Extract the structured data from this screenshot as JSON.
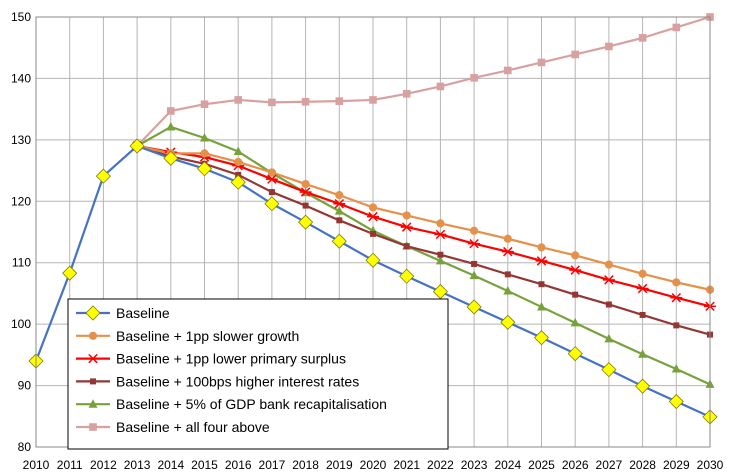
{
  "chart_data": {
    "type": "line",
    "title": "",
    "xlabel": "",
    "ylabel": "",
    "x": [
      2010,
      2011,
      2012,
      2013,
      2014,
      2015,
      2016,
      2017,
      2018,
      2019,
      2020,
      2021,
      2022,
      2023,
      2024,
      2025,
      2026,
      2027,
      2028,
      2029,
      2030
    ],
    "ylim": [
      80,
      150
    ],
    "yticks": [
      80,
      90,
      100,
      110,
      120,
      130,
      140,
      150
    ],
    "grid": "vertical and horizontal major gridlines",
    "legend_position": "bottom-left",
    "series": [
      {
        "name": "Baseline",
        "color": "#4472c4",
        "marker": "diamond",
        "marker_color": "#ffff00",
        "values": [
          94,
          108.3,
          124.1,
          129,
          127,
          125.3,
          123.1,
          119.6,
          116.6,
          113.5,
          110.4,
          107.8,
          105.3,
          102.8,
          100.3,
          97.8,
          95.2,
          92.6,
          89.9,
          87.4,
          84.9
        ]
      },
      {
        "name": "Baseline + 1pp slower growth",
        "color": "#e5914a",
        "marker": "circle",
        "values": [
          null,
          null,
          null,
          129,
          127.8,
          127.8,
          126.4,
          124.7,
          122.8,
          121,
          119,
          117.7,
          116.4,
          115.2,
          113.9,
          112.5,
          111.2,
          109.7,
          108.2,
          106.8,
          105.6
        ]
      },
      {
        "name": "Baseline + 1pp lower primary surplus",
        "color": "#ff0000",
        "marker": "star",
        "values": [
          null,
          null,
          null,
          129,
          128,
          127.2,
          125.8,
          123.6,
          121.5,
          119.6,
          117.5,
          115.8,
          114.6,
          113.1,
          111.8,
          110.3,
          108.8,
          107.2,
          105.8,
          104.3,
          102.9
        ]
      },
      {
        "name": "Baseline + 100bps higher interest rates",
        "color": "#943634",
        "marker": "square",
        "values": [
          null,
          null,
          null,
          129,
          127.3,
          126.1,
          124.3,
          121.5,
          119.3,
          116.9,
          114.7,
          112.7,
          111.3,
          109.8,
          108.1,
          106.5,
          104.8,
          103.2,
          101.5,
          99.8,
          98.3
        ]
      },
      {
        "name": "Baseline + 5% of GDP bank recapitalisation",
        "color": "#77a23b",
        "marker": "triangle",
        "values": [
          null,
          null,
          null,
          129,
          132.1,
          130.3,
          128.1,
          124.6,
          121.4,
          118.4,
          115.2,
          112.7,
          110.3,
          107.9,
          105.4,
          102.8,
          100.2,
          97.6,
          95.1,
          92.7,
          90.2
        ]
      },
      {
        "name": "Baseline + all four above",
        "color": "#d8a1a1",
        "marker": "square",
        "values": [
          null,
          null,
          null,
          129,
          134.7,
          135.8,
          136.5,
          136.1,
          136.2,
          136.3,
          136.5,
          137.5,
          138.7,
          140.1,
          141.3,
          142.6,
          143.9,
          145.2,
          146.6,
          148.3,
          150
        ]
      }
    ]
  }
}
